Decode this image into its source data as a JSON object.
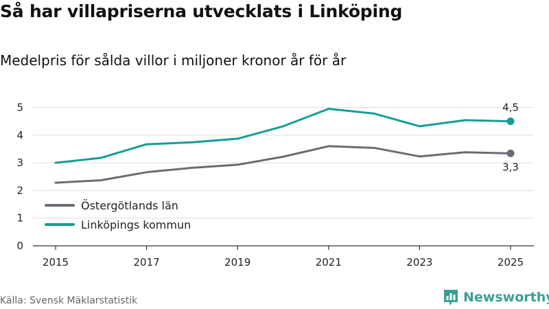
{
  "title": "Så har villapriserna utvecklats i Linköping",
  "subtitle": "Medelpris för sålda villor i miljoner kronor år för år",
  "source": "Källa: Svensk Mäklarstatistik",
  "brand": {
    "name": "Newsworthy",
    "logo_icon": "bar-chart-icon",
    "color": "#3a9f93"
  },
  "chart_data": {
    "type": "line",
    "title": "Så har villapriserna utvecklats i Linköping",
    "subtitle": "Medelpris för sålda villor i miljoner kronor år för år",
    "xlabel": "",
    "ylabel": "",
    "x": [
      2015,
      2016,
      2017,
      2018,
      2019,
      2020,
      2021,
      2022,
      2023,
      2024,
      2025
    ],
    "x_tick_labels": [
      "2015",
      "2017",
      "2019",
      "2021",
      "2023",
      "2025"
    ],
    "y_ticks": [
      0,
      1,
      2,
      3,
      4,
      5
    ],
    "ylim": [
      0,
      5.3
    ],
    "grid": true,
    "legend_position": "bottom-left",
    "series": [
      {
        "name": "Östergötlands län",
        "color": "#6b6b73",
        "values": [
          2.28,
          2.37,
          2.66,
          2.82,
          2.93,
          3.22,
          3.6,
          3.54,
          3.23,
          3.38,
          3.34
        ],
        "end_label": "3,3",
        "end_label_position": "below"
      },
      {
        "name": "Linköpings kommun",
        "color": "#139e94",
        "values": [
          3.0,
          3.18,
          3.67,
          3.74,
          3.87,
          4.32,
          4.95,
          4.78,
          4.32,
          4.54,
          4.5
        ],
        "end_label": "4,5",
        "end_label_position": "above"
      }
    ]
  }
}
